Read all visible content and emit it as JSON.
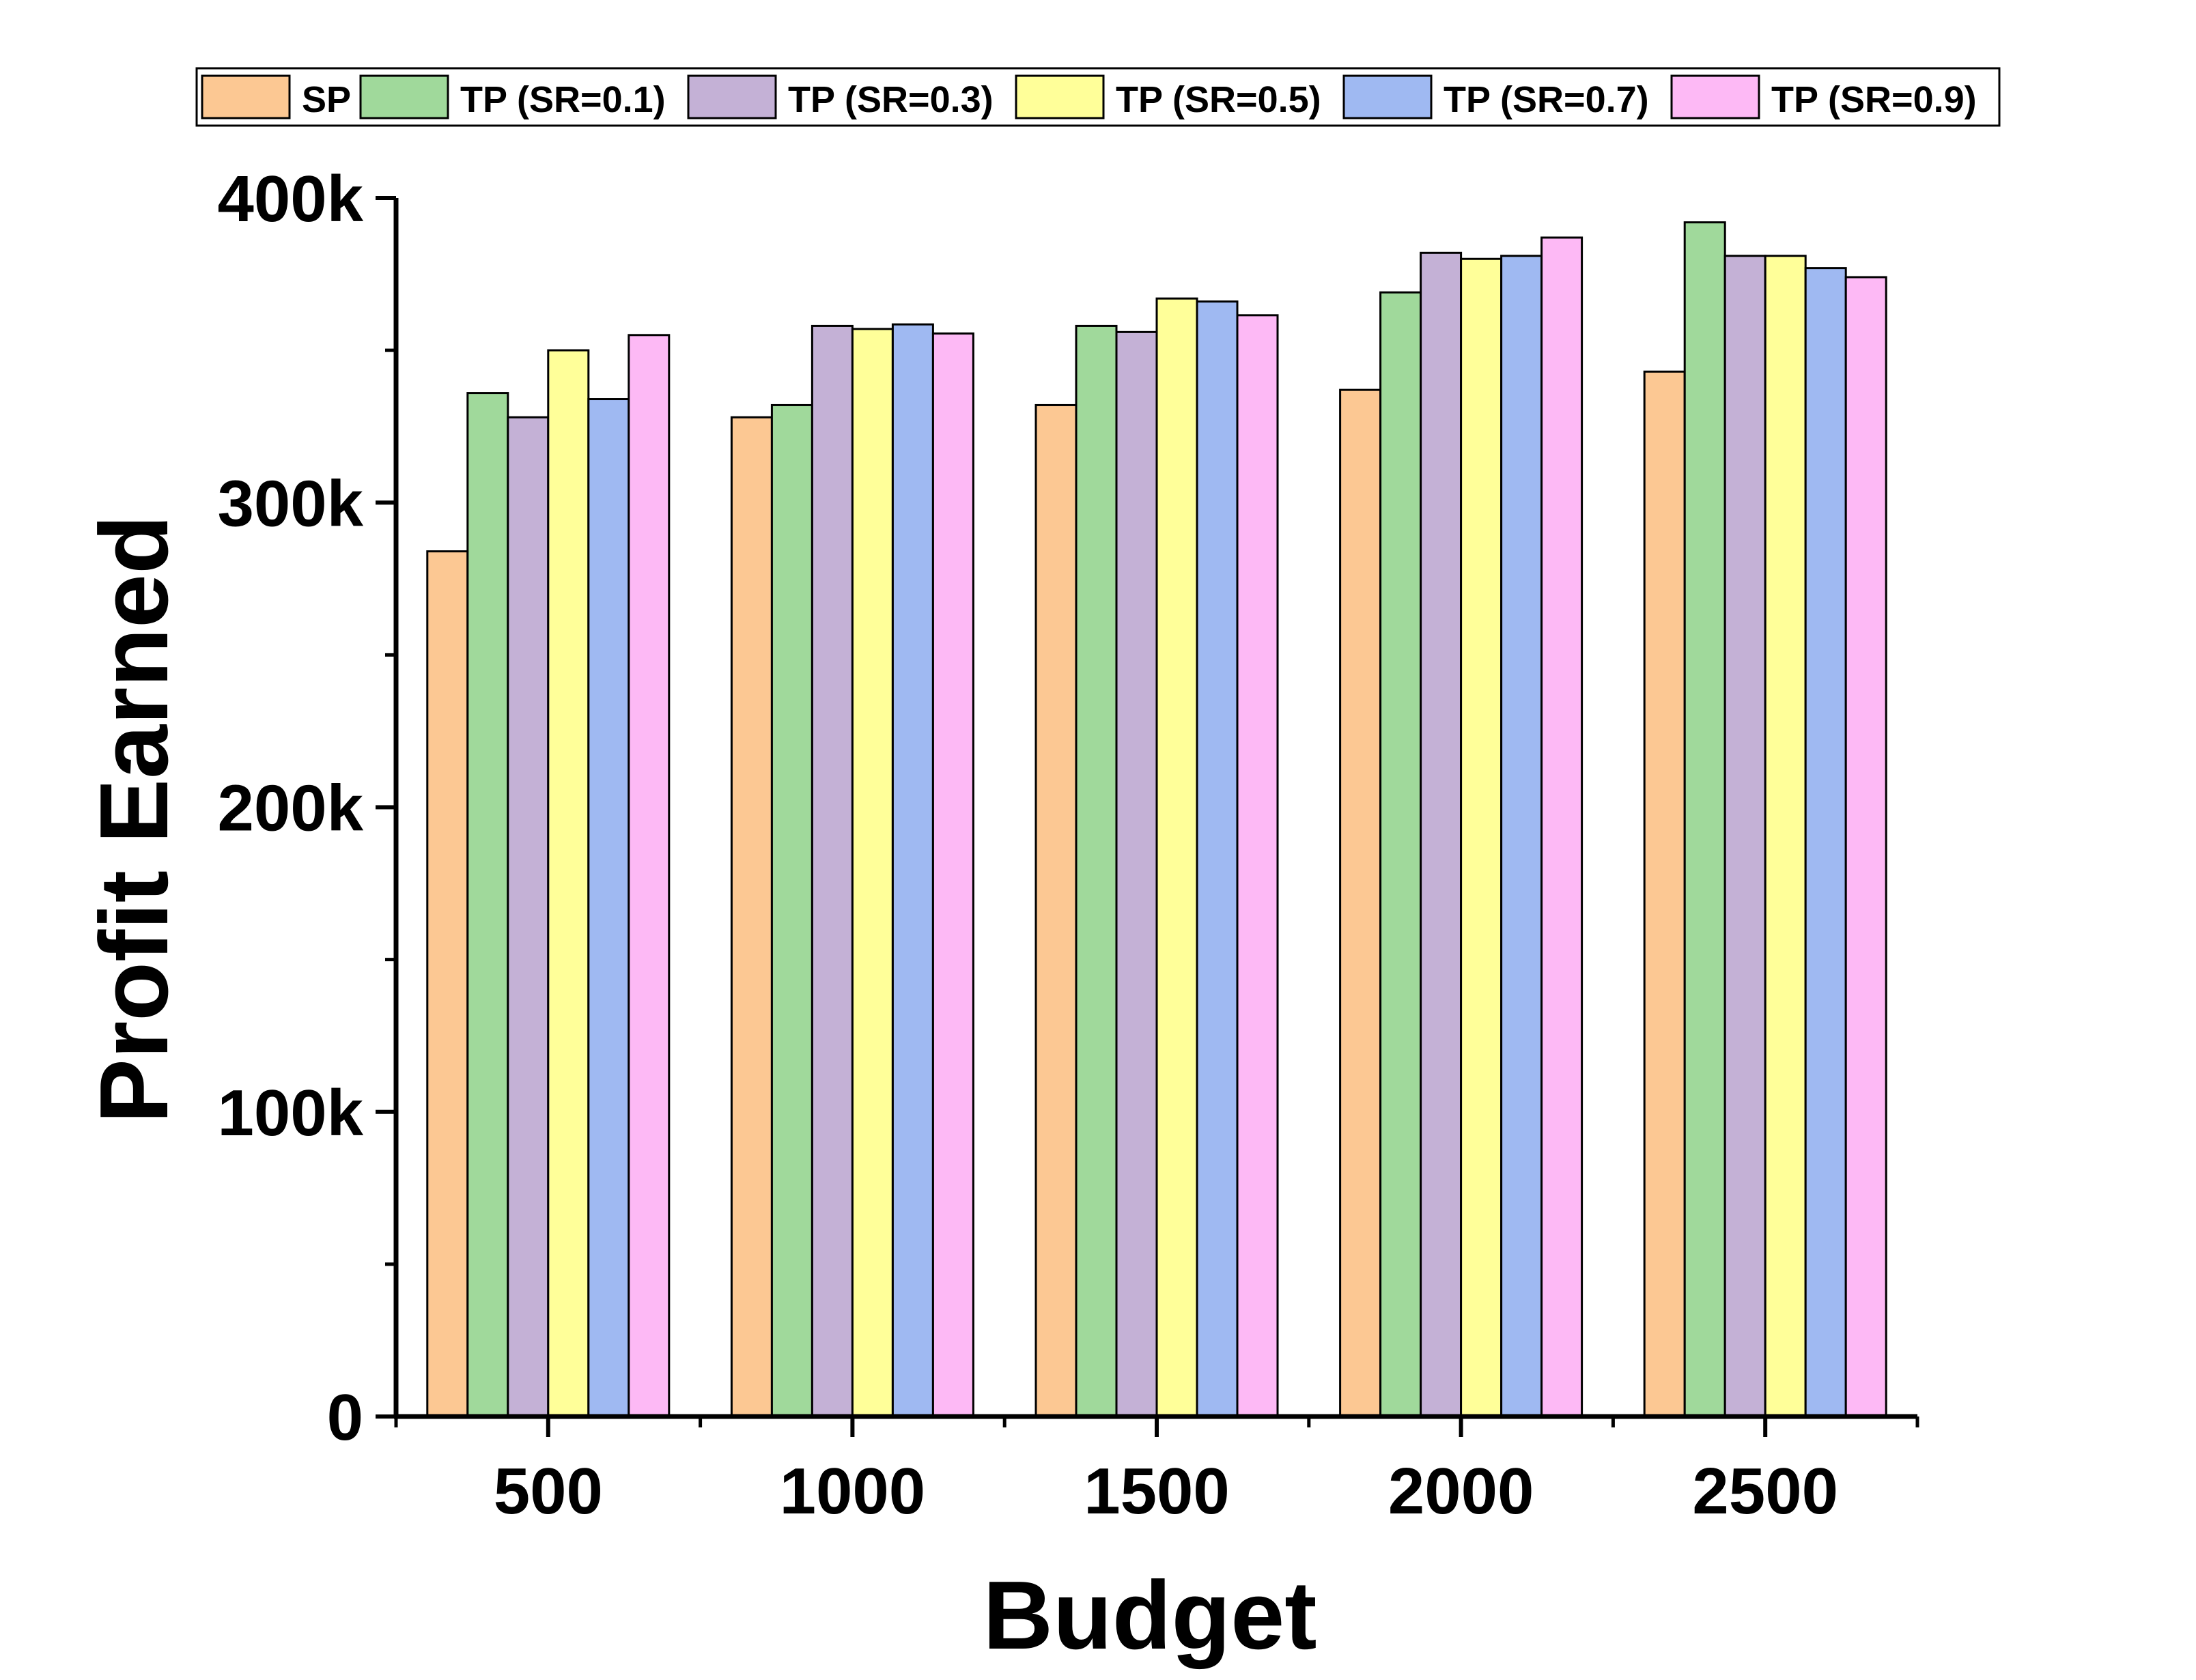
{
  "chart_data": {
    "type": "bar",
    "categories": [
      "500",
      "1000",
      "1500",
      "2000",
      "2500"
    ],
    "series": [
      {
        "name": "SP",
        "color": "#FCC893",
        "values": [
          284000,
          328000,
          332000,
          337000,
          343000
        ]
      },
      {
        "name": "TP (SR=0.1)",
        "color": "#A0D99B",
        "values": [
          336000,
          332000,
          358000,
          369000,
          392000
        ]
      },
      {
        "name": "TP (SR=0.3)",
        "color": "#C4B1D6",
        "values": [
          328000,
          358000,
          356000,
          382000,
          381000
        ]
      },
      {
        "name": "TP (SR=0.5)",
        "color": "#FFFF99",
        "values": [
          350000,
          357000,
          367000,
          380000,
          381000
        ]
      },
      {
        "name": "TP (SR=0.7)",
        "color": "#9FB9F2",
        "values": [
          334000,
          358500,
          366000,
          381000,
          377000
        ]
      },
      {
        "name": "TP (SR=0.9)",
        "color": "#FDB9F5",
        "values": [
          355000,
          355500,
          361500,
          387000,
          374000
        ]
      }
    ],
    "xlabel": "Budget",
    "ylabel": "Profit Earned",
    "ylim": [
      0,
      400000
    ],
    "yticks": [
      0,
      100000,
      200000,
      300000,
      400000
    ],
    "ytick_labels": [
      "0",
      "100k",
      "200k",
      "300k",
      "400k"
    ],
    "legend_position": "top",
    "grid": false
  }
}
